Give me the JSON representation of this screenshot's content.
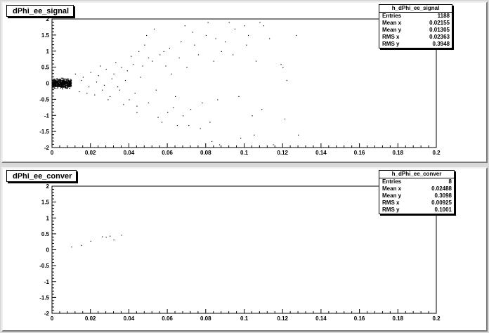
{
  "canvas": {
    "background": "#d9d9d9",
    "pad_color": "#ffffff",
    "marker_color": "#000000"
  },
  "panels": [
    {
      "id": "top",
      "title": "dPhi_ee_signal",
      "stats": {
        "name": "h_dPhi_ee_signal",
        "rows": [
          {
            "label": "Entries",
            "value": "1188"
          },
          {
            "label": "Mean x",
            "value": "0.02155"
          },
          {
            "label": "Mean y",
            "value": "0.01305"
          },
          {
            "label": "RMS x",
            "value": "0.02363"
          },
          {
            "label": "RMS y",
            "value": "0.3948"
          }
        ]
      }
    },
    {
      "id": "bottom",
      "title": "dPhi_ee_conver",
      "stats": {
        "name": "h_dPhi_ee_conver",
        "rows": [
          {
            "label": "Entries",
            "value": "8"
          },
          {
            "label": "Mean x",
            "value": "0.02488"
          },
          {
            "label": "Mean y",
            "value": "0.3098"
          },
          {
            "label": "RMS x",
            "value": "0.00925"
          },
          {
            "label": "RMS y",
            "value": "0.1001"
          }
        ]
      }
    }
  ],
  "chart_data": [
    {
      "type": "scatter",
      "title": "dPhi_ee_signal",
      "xlim": [
        0,
        0.2
      ],
      "ylim": [
        -2,
        2
      ],
      "xticks": [
        "0",
        "0.02",
        "0.04",
        "0.06",
        "0.08",
        "0.1",
        "0.12",
        "0.14",
        "0.16",
        "0.18",
        "0.2"
      ],
      "yticks": [
        "-2",
        "-1.5",
        "-1",
        "-0.5",
        "0",
        "0.5",
        "1",
        "1.5",
        "2"
      ],
      "grid": false,
      "cluster": {
        "x_range": [
          0.0,
          0.01
        ],
        "y_range": [
          -0.2,
          0.2
        ],
        "count": 1000
      },
      "points": [
        [
          0.012,
          0.3
        ],
        [
          0.014,
          -0.25
        ],
        [
          0.016,
          0.2
        ],
        [
          0.018,
          -0.3
        ],
        [
          0.02,
          0.35
        ],
        [
          0.022,
          -0.35
        ],
        [
          0.024,
          0.25
        ],
        [
          0.026,
          -0.2
        ],
        [
          0.028,
          0.45
        ],
        [
          0.03,
          -0.4
        ],
        [
          0.032,
          0.3
        ],
        [
          0.034,
          -0.1
        ],
        [
          0.036,
          0.5
        ],
        [
          0.038,
          0.1
        ],
        [
          0.04,
          -0.5
        ],
        [
          0.042,
          0.6
        ],
        [
          0.044,
          -0.7
        ],
        [
          0.046,
          0.2
        ],
        [
          0.015,
          0.1
        ],
        [
          0.019,
          -0.1
        ],
        [
          0.023,
          0.05
        ],
        [
          0.027,
          -0.05
        ],
        [
          0.031,
          0.15
        ],
        [
          0.035,
          -0.2
        ],
        [
          0.039,
          0.4
        ],
        [
          0.043,
          -0.3
        ],
        [
          0.047,
          0.55
        ],
        [
          0.05,
          -0.6
        ],
        [
          0.052,
          0.7
        ],
        [
          0.054,
          -0.2
        ],
        [
          0.056,
          0.9
        ],
        [
          0.058,
          1.0
        ],
        [
          0.06,
          -0.9
        ],
        [
          0.062,
          0.3
        ],
        [
          0.064,
          -0.4
        ],
        [
          0.066,
          0.8
        ],
        [
          0.068,
          -1.0
        ],
        [
          0.07,
          0.5
        ],
        [
          0.072,
          -0.8
        ],
        [
          0.074,
          1.2
        ],
        [
          0.076,
          0.9
        ],
        [
          0.078,
          -0.6
        ],
        [
          0.08,
          1.5
        ],
        [
          0.082,
          -1.2
        ],
        [
          0.084,
          0.7
        ],
        [
          0.086,
          -0.5
        ],
        [
          0.088,
          1.0
        ],
        [
          0.09,
          1.3
        ],
        [
          0.045,
          1.0
        ],
        [
          0.048,
          1.2
        ],
        [
          0.05,
          0.8
        ],
        [
          0.053,
          1.7
        ],
        [
          0.057,
          -1.2
        ],
        [
          0.061,
          1.1
        ],
        [
          0.065,
          -1.3
        ],
        [
          0.069,
          1.8
        ],
        [
          0.073,
          1.6
        ],
        [
          0.077,
          -1.4
        ],
        [
          0.081,
          1.9
        ],
        [
          0.083,
          -1.8
        ],
        [
          0.085,
          1.4
        ],
        [
          0.087,
          -1.9
        ],
        [
          0.092,
          1.9
        ],
        [
          0.095,
          1.7
        ],
        [
          0.098,
          -1.7
        ],
        [
          0.1,
          1.8
        ],
        [
          0.102,
          1.5
        ],
        [
          0.105,
          -1.6
        ],
        [
          0.108,
          1.9
        ],
        [
          0.11,
          1.8
        ],
        [
          0.113,
          1.4
        ],
        [
          0.115,
          -1.9
        ],
        [
          0.12,
          0.5
        ],
        [
          0.121,
          -1.1
        ],
        [
          0.122,
          0.1
        ],
        [
          0.127,
          1.5
        ],
        [
          0.128,
          -1.6
        ],
        [
          0.119,
          0.6
        ],
        [
          0.094,
          0.9
        ],
        [
          0.097,
          -0.4
        ],
        [
          0.101,
          1.2
        ],
        [
          0.104,
          -1.0
        ],
        [
          0.106,
          0.7
        ],
        [
          0.109,
          -0.8
        ],
        [
          0.025,
          0.55
        ],
        [
          0.029,
          -0.5
        ],
        [
          0.033,
          0.65
        ],
        [
          0.037,
          -0.65
        ],
        [
          0.041,
          0.85
        ],
        [
          0.044,
          -0.9
        ],
        [
          0.049,
          1.5
        ],
        [
          0.055,
          -1.05
        ],
        [
          0.059,
          0.55
        ],
        [
          0.063,
          -0.75
        ],
        [
          0.067,
          1.3
        ],
        [
          0.071,
          -1.3
        ]
      ]
    },
    {
      "type": "scatter",
      "title": "dPhi_ee_conver",
      "xlim": [
        0,
        0.2
      ],
      "ylim": [
        -2,
        2
      ],
      "xticks": [
        "0",
        "0.02",
        "0.04",
        "0.06",
        "0.08",
        "0.1",
        "0.12",
        "0.14",
        "0.16",
        "0.18",
        "0.2"
      ],
      "yticks": [
        "-2",
        "-1.5",
        "-1",
        "-0.5",
        "0",
        "0.5",
        "1",
        "1.5",
        "2"
      ],
      "grid": false,
      "points": [
        [
          0.01,
          0.1
        ],
        [
          0.015,
          0.15
        ],
        [
          0.02,
          0.28
        ],
        [
          0.026,
          0.42
        ],
        [
          0.028,
          0.41
        ],
        [
          0.03,
          0.44
        ],
        [
          0.032,
          0.32
        ],
        [
          0.036,
          0.47
        ]
      ]
    }
  ]
}
